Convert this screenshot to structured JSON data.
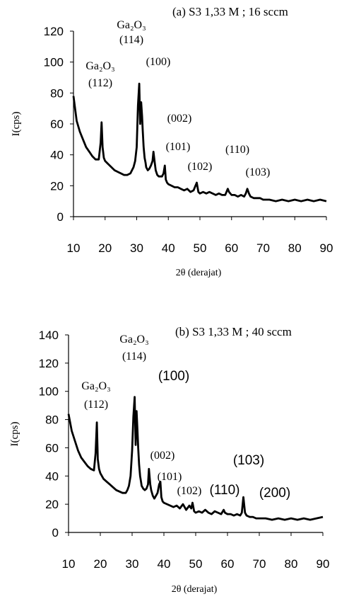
{
  "chart_data": [
    {
      "type": "line",
      "title": "(a) S3 1,33 M ; 16 sccm",
      "xlabel": "2θ (derajat)",
      "ylabel": "I(cps)",
      "xlim": [
        10,
        90
      ],
      "ylim": [
        0,
        120
      ],
      "xticks": [
        "10",
        "20",
        "30",
        "40",
        "50",
        "60",
        "70",
        "80",
        "90"
      ],
      "yticks": [
        "0",
        "20",
        "40",
        "60",
        "80",
        "100",
        "120"
      ],
      "grid": false,
      "annotations": [
        {
          "lines": [
            "Ga₂O₃",
            "(114)"
          ]
        },
        {
          "lines": [
            "Ga₂O₃",
            "(112)"
          ]
        },
        {
          "lines": [
            "(100)"
          ]
        },
        {
          "lines": [
            "(002)"
          ]
        },
        {
          "lines": [
            "(101)"
          ]
        },
        {
          "lines": [
            "(102)"
          ]
        },
        {
          "lines": [
            "(110)"
          ]
        },
        {
          "lines": [
            "(103)"
          ]
        }
      ],
      "series": [
        {
          "x": [
            10,
            11,
            12,
            13,
            14,
            15,
            16,
            17,
            18,
            18.6,
            18.9,
            19.2,
            19.6,
            20,
            21,
            22,
            23,
            24,
            25,
            26,
            27,
            28,
            28.5,
            29,
            29.5,
            30,
            30.4,
            30.8,
            31.1,
            31.4,
            31.7,
            31.9,
            32.2,
            32.5,
            32.8,
            33,
            33.5,
            34,
            34.5,
            35,
            35.3,
            35.7,
            36,
            36.5,
            37,
            38,
            38.5,
            38.9,
            39.2,
            39.6,
            40,
            41,
            42,
            43,
            44,
            45,
            46,
            47,
            48,
            48.6,
            49,
            49.5,
            50,
            51,
            52,
            53,
            54,
            55,
            56,
            57,
            58,
            58.8,
            59.2,
            60,
            61,
            62,
            63,
            64,
            64.5,
            65,
            65.5,
            66,
            67,
            68,
            69,
            70,
            72,
            74,
            76,
            78,
            80,
            82,
            84,
            86,
            88,
            90
          ],
          "y": [
            78,
            62,
            55,
            50,
            45,
            42,
            39,
            37,
            37,
            48,
            61,
            45,
            38,
            36,
            34,
            32,
            30,
            29,
            28,
            27,
            27,
            28,
            30,
            32,
            36,
            45,
            72,
            86,
            60,
            74,
            65,
            56,
            45,
            38,
            35,
            32,
            30,
            31,
            33,
            36,
            42,
            35,
            30,
            27,
            26,
            26,
            28,
            33,
            24,
            22,
            21,
            20,
            19,
            19,
            18,
            17,
            18,
            16,
            17,
            20,
            22,
            16,
            15,
            16,
            15,
            16,
            15,
            14,
            15,
            14,
            14,
            18,
            16,
            14,
            14,
            13,
            14,
            13,
            15,
            18,
            15,
            13,
            12,
            12,
            12,
            11,
            11,
            10,
            11,
            10,
            11,
            10,
            11,
            10,
            11,
            10
          ]
        }
      ]
    },
    {
      "type": "line",
      "title": "(b) S3 1,33 M ; 40 sccm",
      "xlabel": "2θ (derajat)",
      "ylabel": "I(cps)",
      "xlim": [
        10,
        90
      ],
      "ylim": [
        0,
        140
      ],
      "xticks": [
        "10",
        "20",
        "30",
        "40",
        "50",
        "60",
        "70",
        "80",
        "90"
      ],
      "yticks": [
        "0",
        "20",
        "40",
        "60",
        "80",
        "100",
        "120",
        "140"
      ],
      "grid": false,
      "annotations": [
        {
          "lines": [
            "Ga₂O₃",
            "(114)"
          ]
        },
        {
          "lines": [
            "Ga₂O₃",
            "(112)"
          ]
        },
        {
          "lines": [
            "(100)"
          ]
        },
        {
          "lines": [
            "(002)"
          ]
        },
        {
          "lines": [
            "(101)"
          ]
        },
        {
          "lines": [
            "(102)"
          ]
        },
        {
          "lines": [
            "(110)"
          ]
        },
        {
          "lines": [
            "(103)"
          ]
        },
        {
          "lines": [
            "(200)"
          ]
        }
      ],
      "series": [
        {
          "x": [
            10,
            11,
            12,
            13,
            14,
            15,
            16,
            17,
            18,
            18.5,
            18.9,
            19.2,
            19.6,
            20,
            21,
            22,
            23,
            24,
            25,
            26,
            27,
            28,
            28.5,
            29,
            29.5,
            30,
            30.4,
            30.8,
            31.1,
            31.4,
            31.7,
            31.9,
            32.2,
            32.5,
            32.8,
            33,
            33.5,
            34,
            34.5,
            35,
            35.3,
            35.7,
            36,
            36.5,
            37,
            38,
            38.5,
            38.9,
            39.2,
            39.6,
            40,
            41,
            42,
            43,
            44,
            45,
            46,
            47,
            48,
            48.6,
            49,
            49.5,
            50,
            51,
            52,
            53,
            54,
            55,
            56,
            57,
            58,
            58.8,
            59.2,
            60,
            61,
            62,
            63,
            64,
            64.5,
            65,
            65.5,
            66,
            67,
            68,
            69,
            70,
            72,
            74,
            76,
            78,
            80,
            82,
            84,
            86,
            88,
            90
          ],
          "y": [
            84,
            72,
            65,
            58,
            53,
            50,
            47,
            45,
            44,
            56,
            78,
            52,
            45,
            42,
            38,
            36,
            34,
            32,
            30,
            29,
            28,
            28,
            30,
            33,
            40,
            58,
            82,
            96,
            62,
            86,
            72,
            60,
            48,
            40,
            36,
            33,
            31,
            30,
            31,
            34,
            45,
            34,
            30,
            26,
            24,
            28,
            34,
            36,
            25,
            22,
            21,
            20,
            19,
            18,
            19,
            17,
            20,
            16,
            19,
            17,
            21,
            15,
            14,
            15,
            14,
            16,
            14,
            13,
            15,
            14,
            13,
            16,
            14,
            13,
            13,
            12,
            13,
            12,
            14,
            25,
            14,
            12,
            11,
            11,
            10,
            10,
            10,
            9,
            10,
            9,
            10,
            9,
            10,
            9,
            10,
            11
          ]
        }
      ]
    }
  ]
}
